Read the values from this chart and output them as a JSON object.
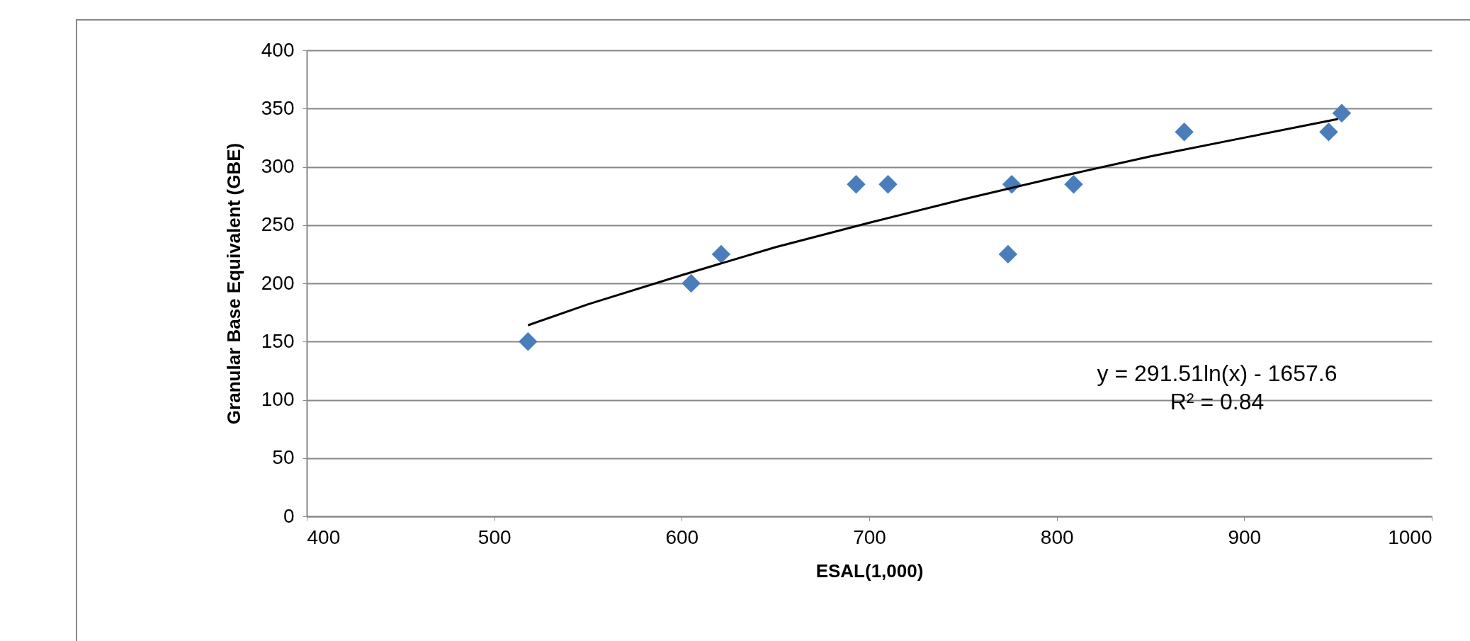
{
  "chart_data": {
    "type": "scatter",
    "xlabel": "ESAL(1,000)",
    "ylabel": "Granular Base Equivalent  (GBE)",
    "xlim": [
      400,
      1000
    ],
    "xticks": [
      400,
      500,
      600,
      700,
      800,
      900,
      1000
    ],
    "ylim": [
      0,
      400
    ],
    "yticks": [
      0,
      50,
      100,
      150,
      200,
      250,
      300,
      350,
      400
    ],
    "grid": "y",
    "marker": "diamond",
    "series": [
      {
        "type": "scatter",
        "color": "#4a7ebb",
        "x": [
          518,
          605,
          621,
          693,
          710,
          774,
          776,
          809,
          868,
          945,
          952
        ],
        "values": [
          150,
          200,
          225,
          285,
          285,
          225,
          285,
          285,
          330,
          330,
          346
        ]
      },
      {
        "type": "line",
        "color": "#000000",
        "line_style": "solid",
        "marker": "none",
        "x": [
          518,
          550,
          600,
          650,
          700,
          750,
          800,
          850,
          900,
          950
        ],
        "values": [
          164,
          182,
          207,
          231,
          252,
          272,
          291,
          309,
          325,
          341
        ]
      }
    ],
    "annotations": [
      "y = 291.51ln(x) - 1657.6",
      "R² = 0.84"
    ]
  }
}
